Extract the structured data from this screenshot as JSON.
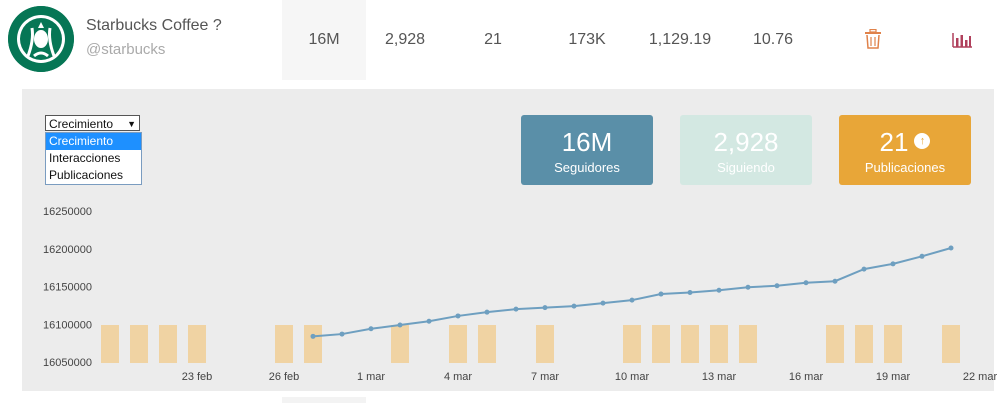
{
  "account": {
    "name": "Starbucks Coffee ?",
    "handle": "@starbucks"
  },
  "row_stats": [
    "16M",
    "2,928",
    "21",
    "173K",
    "1,129.19",
    "10.76"
  ],
  "icons": {
    "delete": "trash-icon",
    "stats": "bar-chart-icon",
    "publish": "arrow-up-circle-icon"
  },
  "metric_select": {
    "value": "Crecimiento",
    "options": [
      "Crecimiento",
      "Interacciones",
      "Publicaciones"
    ]
  },
  "cards": {
    "followers": {
      "value": "16M",
      "label": "Seguidores"
    },
    "following": {
      "value": "2,928",
      "label": "Siguiendo"
    },
    "posts": {
      "value": "21",
      "label": "Publicaciones"
    }
  },
  "colors": {
    "line": "#6e9fc0",
    "bars": "#f0d3a3",
    "card_followers": "#5a8fa8",
    "card_following": "#d3e8e2",
    "card_posts": "#e8a638",
    "delete_icon": "#e0824a",
    "stats_icon": "#b0405c"
  },
  "chart_data": {
    "type": "line",
    "ylim": [
      16050000,
      16250000
    ],
    "yticks": [
      "16250000",
      "16200000",
      "16150000",
      "16100000",
      "16050000"
    ],
    "xticks": [
      "23 feb",
      "26 feb",
      "1 mar",
      "4 mar",
      "7 mar",
      "10 mar",
      "13 mar",
      "16 mar",
      "19 mar",
      "22 mar"
    ],
    "series": [
      {
        "x": [
          "28 feb",
          "1 mar",
          "2 mar",
          "3 mar",
          "4 mar",
          "5 mar",
          "6 mar",
          "7 mar",
          "8 mar",
          "9 mar",
          "10 mar",
          "11 mar",
          "12 mar",
          "13 mar",
          "14 mar",
          "15 mar",
          "16 mar",
          "17 mar",
          "18 mar",
          "19 mar",
          "20 mar",
          "21 mar",
          "22 mar"
        ],
        "values": [
          16084000,
          16087000,
          16094000,
          16099000,
          16104000,
          16111000,
          16116000,
          16120000,
          16122000,
          16124000,
          16128000,
          16132000,
          16140000,
          16142000,
          16145000,
          16149000,
          16151000,
          16155000,
          16157000,
          16173000,
          16180000,
          16190000,
          16201000
        ]
      }
    ],
    "bars": {
      "x": [
        "21 feb",
        "22 feb",
        "23 feb",
        "24 feb",
        "27 feb",
        "28 feb",
        "3 mar",
        "5 mar",
        "6 mar",
        "8 mar",
        "11 mar",
        "12 mar",
        "13 mar",
        "14 mar",
        "15 mar",
        "18 mar",
        "19 mar",
        "20 mar",
        "22 mar"
      ]
    }
  }
}
